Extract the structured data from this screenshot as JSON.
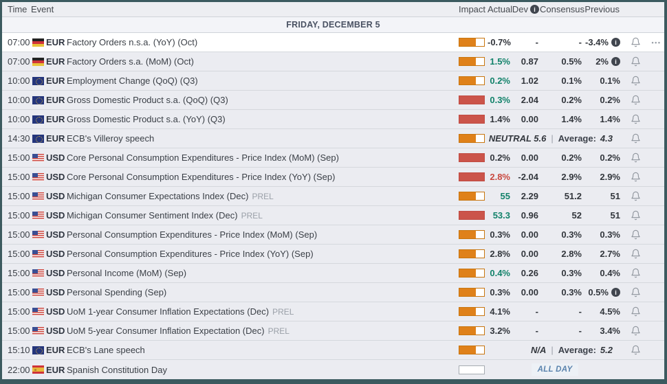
{
  "columns": {
    "time": "Time",
    "event": "Event",
    "impact": "Impact",
    "actual": "Actual",
    "dev": "Dev",
    "consensus": "Consensus",
    "previous": "Previous"
  },
  "date_header": "FRIDAY, DECEMBER 5",
  "icons": {
    "info": "i",
    "menu": "•••",
    "bell": "bell-outline"
  },
  "colors": {
    "impact_medium": "#df811a",
    "impact_high": "#cb544a",
    "positive": "#12826a",
    "negative": "#c9483f",
    "frame_border": "#3c5a5f",
    "allday_text": "#5b83ad"
  },
  "rows": [
    {
      "time": "07:00",
      "flag": "de",
      "currency": "EUR",
      "event": "Factory Orders n.s.a. (YoY) (Oct)",
      "impact": "medium",
      "actual": "-0.7%",
      "actual_tone": "neutral",
      "dev": "-",
      "consensus": "-",
      "previous": "-3.4%",
      "previous_info": true,
      "bell": true,
      "menu": true,
      "highlight": true
    },
    {
      "time": "07:00",
      "flag": "de",
      "currency": "EUR",
      "event": "Factory Orders s.a. (MoM) (Oct)",
      "impact": "medium",
      "actual": "1.5%",
      "actual_tone": "positive",
      "dev": "0.87",
      "consensus": "0.5%",
      "previous": "2%",
      "previous_info": true,
      "bell": true
    },
    {
      "time": "10:00",
      "flag": "eu",
      "currency": "EUR",
      "event": "Employment Change (QoQ) (Q3)",
      "impact": "medium",
      "actual": "0.2%",
      "actual_tone": "positive",
      "dev": "1.02",
      "consensus": "0.1%",
      "previous": "0.1%",
      "bell": true
    },
    {
      "time": "10:00",
      "flag": "eu",
      "currency": "EUR",
      "event": "Gross Domestic Product s.a. (QoQ) (Q3)",
      "impact": "high",
      "actual": "0.3%",
      "actual_tone": "positive",
      "dev": "2.04",
      "consensus": "0.2%",
      "previous": "0.2%",
      "bell": true
    },
    {
      "time": "10:00",
      "flag": "eu",
      "currency": "EUR",
      "event": "Gross Domestic Product s.a. (YoY) (Q3)",
      "impact": "high",
      "actual": "1.4%",
      "actual_tone": "neutral",
      "dev": "0.00",
      "consensus": "1.4%",
      "previous": "1.4%",
      "bell": true
    },
    {
      "time": "14:30",
      "flag": "eu",
      "currency": "EUR",
      "event": "ECB's Villeroy speech",
      "impact": "medium",
      "type": "speech",
      "speech_value": "NEUTRAL 5.6",
      "separator": "|",
      "average_label": "Average:",
      "average_value": "4.3",
      "bell": true
    },
    {
      "time": "15:00",
      "flag": "us",
      "currency": "USD",
      "event": "Core Personal Consumption Expenditures - Price Index (MoM) (Sep)",
      "impact": "high",
      "actual": "0.2%",
      "actual_tone": "neutral",
      "dev": "0.00",
      "consensus": "0.2%",
      "previous": "0.2%",
      "bell": true
    },
    {
      "time": "15:00",
      "flag": "us",
      "currency": "USD",
      "event": "Core Personal Consumption Expenditures - Price Index (YoY) (Sep)",
      "impact": "high",
      "actual": "2.8%",
      "actual_tone": "negative",
      "dev": "-2.04",
      "consensus": "2.9%",
      "previous": "2.9%",
      "bell": true
    },
    {
      "time": "15:00",
      "flag": "us",
      "currency": "USD",
      "event": "Michigan Consumer Expectations Index (Dec)",
      "suffix": "PREL",
      "impact": "medium",
      "actual": "55",
      "actual_tone": "positive",
      "dev": "2.29",
      "consensus": "51.2",
      "previous": "51",
      "bell": true
    },
    {
      "time": "15:00",
      "flag": "us",
      "currency": "USD",
      "event": "Michigan Consumer Sentiment Index (Dec)",
      "suffix": "PREL",
      "impact": "high",
      "actual": "53.3",
      "actual_tone": "positive",
      "dev": "0.96",
      "consensus": "52",
      "previous": "51",
      "bell": true
    },
    {
      "time": "15:00",
      "flag": "us",
      "currency": "USD",
      "event": "Personal Consumption Expenditures - Price Index (MoM) (Sep)",
      "impact": "medium",
      "actual": "0.3%",
      "actual_tone": "neutral",
      "dev": "0.00",
      "consensus": "0.3%",
      "previous": "0.3%",
      "bell": true
    },
    {
      "time": "15:00",
      "flag": "us",
      "currency": "USD",
      "event": "Personal Consumption Expenditures - Price Index (YoY) (Sep)",
      "impact": "medium",
      "actual": "2.8%",
      "actual_tone": "neutral",
      "dev": "0.00",
      "consensus": "2.8%",
      "previous": "2.7%",
      "bell": true
    },
    {
      "time": "15:00",
      "flag": "us",
      "currency": "USD",
      "event": "Personal Income (MoM) (Sep)",
      "impact": "medium",
      "actual": "0.4%",
      "actual_tone": "positive",
      "dev": "0.26",
      "consensus": "0.3%",
      "previous": "0.4%",
      "bell": true
    },
    {
      "time": "15:00",
      "flag": "us",
      "currency": "USD",
      "event": "Personal Spending (Sep)",
      "impact": "medium",
      "actual": "0.3%",
      "actual_tone": "neutral",
      "dev": "0.00",
      "consensus": "0.3%",
      "previous": "0.5%",
      "previous_info": true,
      "bell": true
    },
    {
      "time": "15:00",
      "flag": "us",
      "currency": "USD",
      "event": "UoM 1-year Consumer Inflation Expectations (Dec)",
      "suffix": "PREL",
      "impact": "medium",
      "actual": "4.1%",
      "actual_tone": "neutral",
      "dev": "-",
      "consensus": "-",
      "previous": "4.5%",
      "bell": true
    },
    {
      "time": "15:00",
      "flag": "us",
      "currency": "USD",
      "event": "UoM 5-year Consumer Inflation Expectation (Dec)",
      "suffix": "PREL",
      "impact": "medium",
      "actual": "3.2%",
      "actual_tone": "neutral",
      "dev": "-",
      "consensus": "-",
      "previous": "3.4%",
      "bell": true
    },
    {
      "time": "15:10",
      "flag": "eu",
      "currency": "EUR",
      "event": "ECB's Lane speech",
      "impact": "medium",
      "type": "speech",
      "speech_value": "N/A",
      "separator": "|",
      "average_label": "Average:",
      "average_value": "5.2",
      "bell": true
    },
    {
      "time": "22:00",
      "flag": "es",
      "currency": "EUR",
      "event": "Spanish Constitution Day",
      "impact": "none",
      "type": "allday",
      "allday_label": "ALL DAY",
      "bell": false
    }
  ]
}
